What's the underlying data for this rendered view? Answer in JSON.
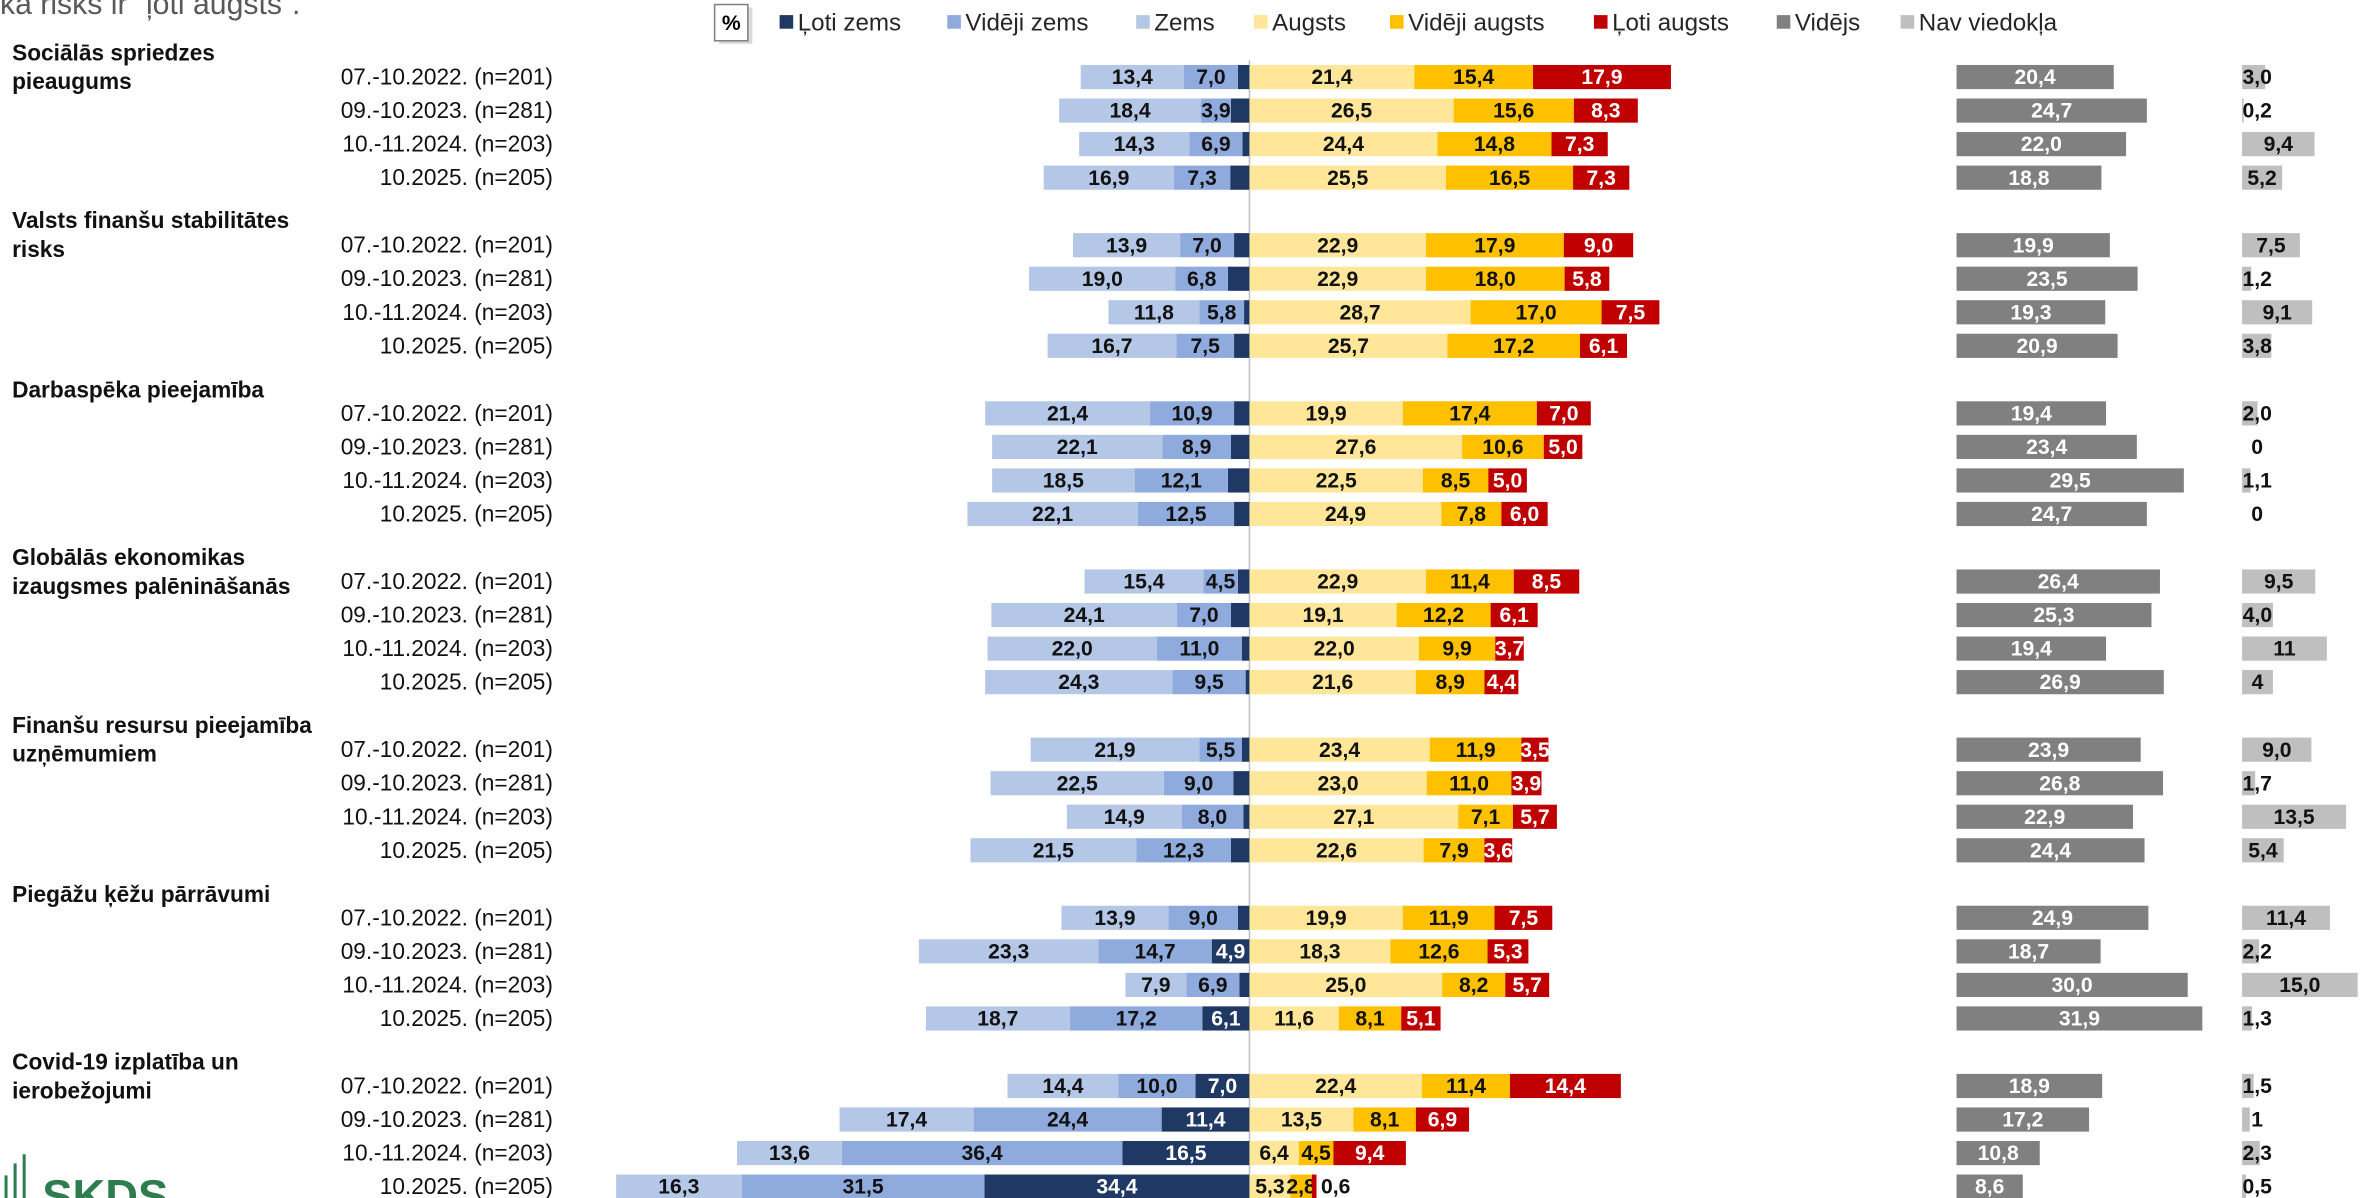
{
  "header": {
    "title": "ka risks ir “ļoti augsts”.",
    "unit": "%",
    "logo": "SKDS"
  },
  "chart_data": {
    "type": "diverging_bar",
    "series": [
      {
        "name": "Ļoti zems",
        "color": "#1f3864",
        "side": "left"
      },
      {
        "name": "Vidēji zems",
        "color": "#8faadc",
        "side": "left"
      },
      {
        "name": "Zems",
        "color": "#b4c7e7",
        "side": "left"
      },
      {
        "name": "Augsts",
        "color": "#ffe699",
        "side": "right"
      },
      {
        "name": "Vidēji augsts",
        "color": "#ffc000",
        "side": "right"
      },
      {
        "name": "Ļoti augsts",
        "color": "#c00000",
        "side": "right"
      },
      {
        "name": "Vidējs",
        "color": "#808080",
        "side": "middle"
      },
      {
        "name": "Nav viedokļa",
        "color": "#bfbfbf",
        "side": "end"
      }
    ],
    "groups": [
      {
        "name": "Sociālās spriedzes pieaugums",
        "categories": [
          "07.-10.2022. (n=201)",
          "09.-10.2023. (n=281)",
          "10.-11.2024. (n=203)",
          "10.2025. (n=205)"
        ],
        "values": [
          [
            1.5,
            2.4,
            0.9,
            2.5
          ],
          [
            7.0,
            3.9,
            6.9,
            7.3
          ],
          [
            13.4,
            18.4,
            14.3,
            16.9
          ],
          [
            21.4,
            26.5,
            24.4,
            25.5
          ],
          [
            15.4,
            15.6,
            14.8,
            16.5
          ],
          [
            17.9,
            8.3,
            7.3,
            7.3
          ],
          [
            20.4,
            24.7,
            22.0,
            18.8
          ],
          [
            3.0,
            0.2,
            9.4,
            5.2
          ]
        ],
        "value_labels": [
          [
            "1,5",
            "2,4",
            "0,9",
            "2,5"
          ],
          [
            "7,0",
            "3,9",
            "6,9",
            "7,3"
          ],
          [
            "13,4",
            "18,4",
            "14,3",
            "16,9"
          ],
          [
            "21,4",
            "26,5",
            "24,4",
            "25,5"
          ],
          [
            "15,4",
            "15,6",
            "14,8",
            "16,5"
          ],
          [
            "17,9",
            "8,3",
            "7,3",
            "7,3"
          ],
          [
            "20,4",
            "24,7",
            "22,0",
            "18,8"
          ],
          [
            "3,0",
            "0,2",
            "9,4",
            "5,2"
          ]
        ]
      },
      {
        "name": "Valsts finanšu stabilitātes risks",
        "categories": [
          "07.-10.2022. (n=201)",
          "09.-10.2023. (n=281)",
          "10.-11.2024. (n=203)",
          "10.2025. (n=205)"
        ],
        "values": [
          [
            2.0,
            2.8,
            0.7,
            2.0
          ],
          [
            7.0,
            6.8,
            5.8,
            7.5
          ],
          [
            13.9,
            19.0,
            11.8,
            16.7
          ],
          [
            22.9,
            22.9,
            28.7,
            25.7
          ],
          [
            17.9,
            18.0,
            17.0,
            17.2
          ],
          [
            9.0,
            5.8,
            7.5,
            6.1
          ],
          [
            19.9,
            23.5,
            19.3,
            20.9
          ],
          [
            7.5,
            1.2,
            9.1,
            3.8
          ]
        ],
        "value_labels": [
          [
            "2,0",
            "2,8",
            "0,7",
            "2,0"
          ],
          [
            "7,0",
            "6,8",
            "5,8",
            "7,5"
          ],
          [
            "13,9",
            "19,0",
            "11,8",
            "16,7"
          ],
          [
            "22,9",
            "22,9",
            "28,7",
            "25,7"
          ],
          [
            "17,9",
            "18,0",
            "17,0",
            "17,2"
          ],
          [
            "9,0",
            "5,8",
            "7,5",
            "6,1"
          ],
          [
            "19,9",
            "23,5",
            "19,3",
            "20,9"
          ],
          [
            "7,5",
            "1,2",
            "9,1",
            "3,8"
          ]
        ]
      },
      {
        "name": "Darbaspēka pieejamība",
        "categories": [
          "07.-10.2022. (n=201)",
          "09.-10.2023. (n=281)",
          "10.-11.2024. (n=203)",
          "10.2025. (n=205)"
        ],
        "values": [
          [
            2.0,
            2.4,
            2.8,
            2.0
          ],
          [
            10.9,
            8.9,
            12.1,
            12.5
          ],
          [
            21.4,
            22.1,
            18.5,
            22.1
          ],
          [
            19.9,
            27.6,
            22.5,
            24.9
          ],
          [
            17.4,
            10.6,
            8.5,
            7.8
          ],
          [
            7.0,
            5.0,
            5.0,
            6.0
          ],
          [
            19.4,
            23.4,
            29.5,
            24.7
          ],
          [
            2.0,
            0,
            1.1,
            0
          ]
        ],
        "value_labels": [
          [
            "2,0",
            "2,4",
            "2,8",
            "2,0"
          ],
          [
            "10,9",
            "8,9",
            "12,1",
            "12,5"
          ],
          [
            "21,4",
            "22,1",
            "18,5",
            "22,1"
          ],
          [
            "19,9",
            "27,6",
            "22,5",
            "24,9"
          ],
          [
            "17,4",
            "10,6",
            "8,5",
            "7,8"
          ],
          [
            "7,0",
            "5,0",
            "5,0",
            "6,0"
          ],
          [
            "19,4",
            "23,4",
            "29,5",
            "24,7"
          ],
          [
            "2,0",
            "0",
            "1,1",
            "0"
          ]
        ]
      },
      {
        "name": "Globālās ekonomikas izaugsmes palēnināšanās",
        "categories": [
          "07.-10.2022. (n=201)",
          "09.-10.2023. (n=281)",
          "10.-11.2024. (n=203)",
          "10.2025. (n=205)"
        ],
        "values": [
          [
            1.5,
            2.4,
            1.0,
            0.5
          ],
          [
            4.5,
            7.0,
            11.0,
            9.5
          ],
          [
            15.4,
            24.1,
            22.0,
            24.3
          ],
          [
            22.9,
            19.1,
            22.0,
            21.6
          ],
          [
            11.4,
            12.2,
            9.9,
            8.9
          ],
          [
            8.5,
            6.1,
            3.7,
            4.4
          ],
          [
            26.4,
            25.3,
            19.4,
            26.9
          ],
          [
            9.5,
            4.0,
            11,
            4
          ]
        ],
        "value_labels": [
          [
            "1,5",
            "2,4",
            "1,0",
            "0,5"
          ],
          [
            "4,5",
            "7,0",
            "11,0",
            "9,5"
          ],
          [
            "15,4",
            "24,1",
            "22,0",
            "24,3"
          ],
          [
            "22,9",
            "19,1",
            "22,0",
            "21,6"
          ],
          [
            "11,4",
            "12,2",
            "9,9",
            "8,9"
          ],
          [
            "8,5",
            "6,1",
            "3,7",
            "4,4"
          ],
          [
            "26,4",
            "25,3",
            "19,4",
            "26,9"
          ],
          [
            "9,5",
            "4,0",
            "11",
            "4"
          ]
        ]
      },
      {
        "name": "Finanšu resursu pieejamība uzņēmumiem",
        "categories": [
          "07.-10.2022. (n=201)",
          "09.-10.2023. (n=281)",
          "10.-11.2024. (n=203)",
          "10.2025. (n=205)"
        ],
        "values": [
          [
            1.0,
            2.1,
            0.8,
            2.4
          ],
          [
            5.5,
            9.0,
            8.0,
            12.3
          ],
          [
            21.9,
            22.5,
            14.9,
            21.5
          ],
          [
            23.4,
            23.0,
            27.1,
            22.6
          ],
          [
            11.9,
            11.0,
            7.1,
            7.9
          ],
          [
            3.5,
            3.9,
            5.7,
            3.6
          ],
          [
            23.9,
            26.8,
            22.9,
            24.4
          ],
          [
            9.0,
            1.7,
            13.5,
            5.4
          ]
        ],
        "value_labels": [
          [
            "1,0",
            "2,1",
            "0,8",
            "2,4"
          ],
          [
            "5,5",
            "9,0",
            "8,0",
            "12,3"
          ],
          [
            "21,9",
            "22,5",
            "14,9",
            "21,5"
          ],
          [
            "23,4",
            "23,0",
            "27,1",
            "22,6"
          ],
          [
            "11,9",
            "11,0",
            "7,1",
            "7,9"
          ],
          [
            "3,5",
            "3,9",
            "5,7",
            "3,6"
          ],
          [
            "23,9",
            "26,8",
            "22,9",
            "24,4"
          ],
          [
            "9,0",
            "1,7",
            "13,5",
            "5,4"
          ]
        ]
      },
      {
        "name": "Piegāžu ķēžu pārrāvumi",
        "categories": [
          "07.-10.2022. (n=201)",
          "09.-10.2023. (n=281)",
          "10.-11.2024. (n=203)",
          "10.2025. (n=205)"
        ],
        "values": [
          [
            1.5,
            4.9,
            1.3,
            6.1
          ],
          [
            9.0,
            14.7,
            6.9,
            17.2
          ],
          [
            13.9,
            23.3,
            7.9,
            18.7
          ],
          [
            19.9,
            18.3,
            25.0,
            11.6
          ],
          [
            11.9,
            12.6,
            8.2,
            8.1
          ],
          [
            7.5,
            5.3,
            5.7,
            5.1
          ],
          [
            24.9,
            18.7,
            30.0,
            31.9
          ],
          [
            11.4,
            2.2,
            15.0,
            1.3
          ]
        ],
        "value_labels": [
          [
            "1,5",
            "4,9",
            "1,3",
            "6,1"
          ],
          [
            "9,0",
            "14,7",
            "6,9",
            "17,2"
          ],
          [
            "13,9",
            "23,3",
            "7,9",
            "18,7"
          ],
          [
            "19,9",
            "18,3",
            "25,0",
            "11,6"
          ],
          [
            "11,9",
            "12,6",
            "8,2",
            "8,1"
          ],
          [
            "7,5",
            "5,3",
            "5,7",
            "5,1"
          ],
          [
            "24,9",
            "18,7",
            "30,0",
            "31,9"
          ],
          [
            "11,4",
            "2,2",
            "15,0",
            "1,3"
          ]
        ]
      },
      {
        "name": "Covid-19 izplatība un ierobežojumi",
        "categories": [
          "07.-10.2022. (n=201)",
          "09.-10.2023. (n=281)",
          "10.-11.2024. (n=203)",
          "10.2025. (n=205)"
        ],
        "values": [
          [
            7.0,
            11.4,
            16.5,
            34.4
          ],
          [
            10.0,
            24.4,
            36.4,
            31.5
          ],
          [
            14.4,
            17.4,
            13.6,
            16.3
          ],
          [
            22.4,
            13.5,
            6.4,
            5.3
          ],
          [
            11.4,
            8.1,
            4.5,
            2.8
          ],
          [
            14.4,
            6.9,
            9.4,
            0.6
          ],
          [
            18.9,
            17.2,
            10.8,
            8.6
          ],
          [
            1.5,
            1,
            2.3,
            0.5
          ]
        ],
        "value_labels": [
          [
            "7,0",
            "11,4",
            "16,5",
            "34,4"
          ],
          [
            "10,0",
            "24,4",
            "36,4",
            "31,5"
          ],
          [
            "14,4",
            "17,4",
            "13,6",
            "16,3"
          ],
          [
            "22,4",
            "13,5",
            "6,4",
            "5,3"
          ],
          [
            "11,4",
            "8,1",
            "4,5",
            "2,8"
          ],
          [
            "14,4",
            "6,9",
            "9,4",
            "0,6"
          ],
          [
            "18,9",
            "17,2",
            "10,8",
            "8,6"
          ],
          [
            "1,5",
            "1",
            "2,3",
            "0,5"
          ]
        ]
      }
    ]
  }
}
